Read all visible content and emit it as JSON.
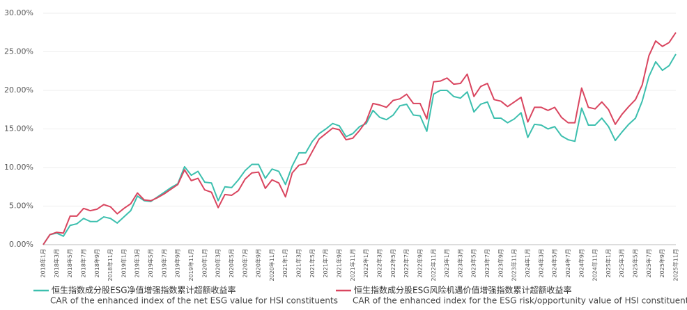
{
  "chart_data": {
    "type": "line",
    "categories": [
      "2018年1月",
      null,
      "2018年3月",
      null,
      "2018年5月",
      null,
      "2018年7月",
      null,
      "2018年9月",
      null,
      "2018年11月",
      null,
      "2019年1月",
      null,
      "2019年3月",
      null,
      "2019年5月",
      null,
      "2019年7月",
      null,
      "2019年9月",
      null,
      "2019年11月",
      null,
      "2020年1月",
      null,
      "2020年3月",
      null,
      "2020年5月",
      null,
      "2020年7月",
      null,
      "2020年9月",
      null,
      "2020年11月",
      null,
      "2021年1月",
      null,
      "2021年3月",
      null,
      "2021年5月",
      null,
      "2021年7月",
      null,
      "2021年9月",
      null,
      "2021年11月",
      null,
      "2022年1月",
      null,
      "2022年3月",
      null,
      "2022年5月",
      null,
      "2022年7月",
      null,
      "2022年9月",
      null,
      "2022年11月",
      null,
      "2023年1月",
      null,
      "2023年3月",
      null,
      "2023年5月",
      null,
      "2023年7月",
      null,
      "2023年9月",
      null,
      "2023年11月",
      null,
      "2024年1月",
      null,
      "2024年3月",
      null,
      "2024年5月",
      null,
      "2024年7月",
      null,
      "2024年9月",
      null,
      "2024年11月",
      null,
      "2025年1月",
      null,
      "2025年3月",
      null,
      "2025年5月",
      null,
      "2025年7月",
      null,
      "2025年9月",
      null,
      "2025年11月"
    ],
    "series": [
      {
        "name": "恒生指数成分股ESG净值增强指数累计超额收益率",
        "description": "CAR of  the enhanced index of the net ESG value for HSI constituents",
        "color": "#3cbfae",
        "values": [
          0,
          1.3,
          1.5,
          1.1,
          2.5,
          2.7,
          3.4,
          3.0,
          3.0,
          3.6,
          3.4,
          2.8,
          3.6,
          4.4,
          6.3,
          5.7,
          5.6,
          6.2,
          6.8,
          7.4,
          7.9,
          10.1,
          9.0,
          9.5,
          8.1,
          8.0,
          5.7,
          7.5,
          7.4,
          8.4,
          9.6,
          10.4,
          10.4,
          8.6,
          9.8,
          9.5,
          7.8,
          10.2,
          11.9,
          11.9,
          13.4,
          14.4,
          15.0,
          15.7,
          15.4,
          14.0,
          14.4,
          15.3,
          15.7,
          17.4,
          16.5,
          16.2,
          16.8,
          18.0,
          18.2,
          16.8,
          16.7,
          14.7,
          19.5,
          20.0,
          20.0,
          19.2,
          19.0,
          19.8,
          17.2,
          18.2,
          18.5,
          16.4,
          16.4,
          15.8,
          16.3,
          17.1,
          13.9,
          15.6,
          15.5,
          15.0,
          15.3,
          14.1,
          13.6,
          13.4,
          17.7,
          15.5,
          15.5,
          16.4,
          15.3,
          13.5,
          14.6,
          15.6,
          16.4,
          18.6,
          21.8,
          23.7,
          22.6,
          23.2,
          24.7
        ]
      },
      {
        "name": "恒生指数成分股ESG风险机遇价值增强指数累计超额收益率",
        "description": "CAR of the enhanced index for the ESG risk/opportunity value of HSI constituents",
        "color": "#d9455f",
        "values": [
          0,
          1.3,
          1.6,
          1.5,
          3.7,
          3.7,
          4.7,
          4.4,
          4.6,
          5.2,
          4.9,
          4.0,
          4.7,
          5.3,
          6.7,
          5.8,
          5.7,
          6.1,
          6.6,
          7.2,
          7.8,
          9.7,
          8.3,
          8.6,
          7.1,
          6.8,
          4.8,
          6.5,
          6.4,
          7.0,
          8.5,
          9.3,
          9.4,
          7.3,
          8.4,
          8.0,
          6.2,
          9.3,
          10.3,
          10.5,
          12.1,
          13.7,
          14.4,
          15.1,
          14.9,
          13.6,
          13.8,
          14.8,
          16.0,
          18.3,
          18.1,
          17.8,
          18.7,
          18.9,
          19.5,
          18.3,
          18.3,
          16.3,
          21.1,
          21.2,
          21.6,
          20.8,
          20.9,
          22.1,
          19.2,
          20.5,
          20.9,
          18.8,
          18.6,
          17.9,
          18.5,
          19.1,
          15.9,
          17.8,
          17.8,
          17.4,
          17.8,
          16.5,
          15.8,
          15.8,
          20.3,
          17.8,
          17.6,
          18.5,
          17.5,
          15.6,
          16.9,
          17.9,
          18.8,
          20.7,
          24.5,
          26.4,
          25.7,
          26.2,
          27.5
        ]
      }
    ],
    "ylim": [
      0,
      30
    ],
    "yticks": [
      {
        "value": 0,
        "label": "0.00%"
      },
      {
        "value": 5,
        "label": "5.00%"
      },
      {
        "value": 10,
        "label": "10.00%"
      },
      {
        "value": 15,
        "label": "15.00%"
      },
      {
        "value": 20,
        "label": "20.00%"
      },
      {
        "value": 25,
        "label": "25.00%"
      },
      {
        "value": 30,
        "label": "30.00%"
      }
    ],
    "grid": true
  }
}
